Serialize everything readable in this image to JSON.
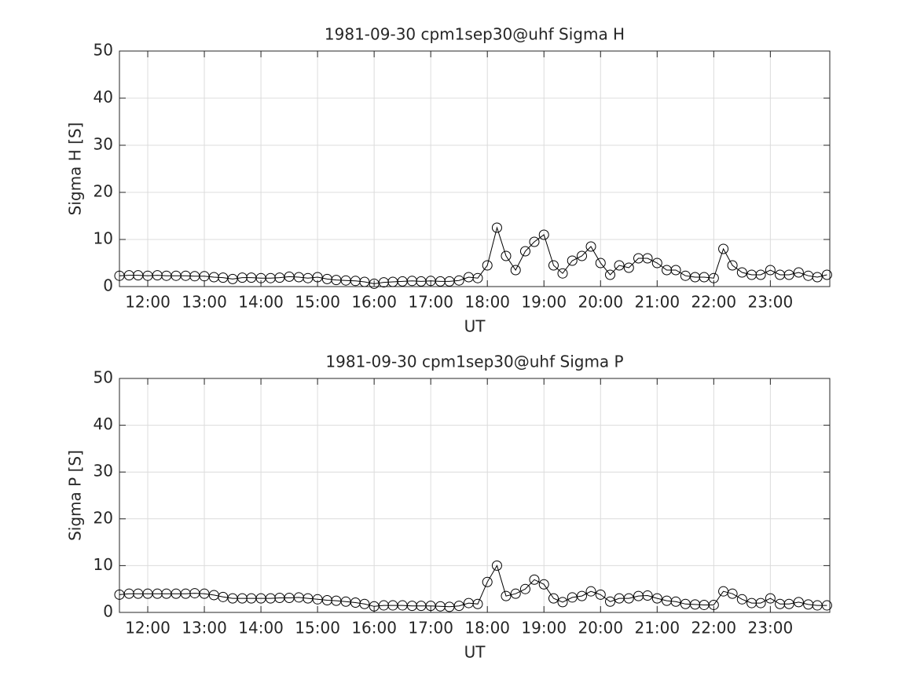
{
  "chart_data": [
    {
      "type": "line",
      "title": "1981-09-30  cpm1sep30@uhf Sigma H",
      "x_label": "UT",
      "y_label": "Sigma H [S]",
      "xlim": [
        11.5,
        24.05
      ],
      "ylim": [
        0,
        50
      ],
      "yticks": [
        0,
        10,
        20,
        30,
        40,
        50
      ],
      "xticks": [
        {
          "value": 12,
          "label": "12:00"
        },
        {
          "value": 13,
          "label": "13:00"
        },
        {
          "value": 14,
          "label": "14:00"
        },
        {
          "value": 15,
          "label": "15:00"
        },
        {
          "value": 16,
          "label": "16:00"
        },
        {
          "value": 17,
          "label": "17:00"
        },
        {
          "value": 18,
          "label": "18:00"
        },
        {
          "value": 19,
          "label": "19:00"
        },
        {
          "value": 20,
          "label": "20:00"
        },
        {
          "value": 21,
          "label": "21:00"
        },
        {
          "value": 22,
          "label": "22:00"
        },
        {
          "value": 23,
          "label": "23:00"
        }
      ],
      "grid": true,
      "color": "#000000",
      "x": [
        11.5,
        11.67,
        11.83,
        12,
        12.17,
        12.33,
        12.5,
        12.67,
        12.83,
        13,
        13.17,
        13.33,
        13.5,
        13.67,
        13.83,
        14,
        14.17,
        14.33,
        14.5,
        14.67,
        14.83,
        15,
        15.17,
        15.33,
        15.5,
        15.67,
        15.83,
        16,
        16.17,
        16.33,
        16.5,
        16.67,
        16.83,
        17,
        17.17,
        17.33,
        17.5,
        17.67,
        17.83,
        18,
        18.17,
        18.33,
        18.5,
        18.67,
        18.83,
        19,
        19.17,
        19.33,
        19.5,
        19.67,
        19.83,
        20,
        20.17,
        20.33,
        20.5,
        20.67,
        20.83,
        21,
        21.17,
        21.33,
        21.5,
        21.67,
        21.83,
        22,
        22.17,
        22.33,
        22.5,
        22.67,
        22.83,
        23,
        23.17,
        23.33,
        23.5,
        23.67,
        23.83,
        24
      ],
      "values": [
        2.3,
        2.4,
        2.4,
        2.3,
        2.4,
        2.3,
        2.3,
        2.3,
        2.2,
        2.2,
        2.0,
        1.9,
        1.6,
        1.9,
        1.9,
        1.8,
        1.8,
        1.9,
        2.1,
        2.0,
        1.8,
        2.0,
        1.6,
        1.4,
        1.3,
        1.2,
        1.0,
        0.6,
        0.9,
        1.0,
        1.1,
        1.2,
        1.1,
        1.2,
        1.1,
        1.1,
        1.3,
        2.0,
        1.8,
        4.5,
        12.5,
        6.5,
        3.5,
        7.5,
        9.5,
        11,
        4.5,
        2.8,
        5.5,
        6.5,
        8.5,
        5,
        2.5,
        4.5,
        4,
        6,
        6,
        5,
        3.5,
        3.5,
        2.3,
        2.0,
        2.0,
        1.8,
        8,
        4.5,
        3,
        2.5,
        2.5,
        3.5,
        2.5,
        2.5,
        3,
        2.3,
        2.0,
        2.5
      ]
    },
    {
      "type": "line",
      "title": "1981-09-30  cpm1sep30@uhf Sigma P",
      "x_label": "UT",
      "y_label": "Sigma P [S]",
      "xlim": [
        11.5,
        24.05
      ],
      "ylim": [
        0,
        50
      ],
      "yticks": [
        0,
        10,
        20,
        30,
        40,
        50
      ],
      "xticks": [
        {
          "value": 12,
          "label": "12:00"
        },
        {
          "value": 13,
          "label": "13:00"
        },
        {
          "value": 14,
          "label": "14:00"
        },
        {
          "value": 15,
          "label": "15:00"
        },
        {
          "value": 16,
          "label": "16:00"
        },
        {
          "value": 17,
          "label": "17:00"
        },
        {
          "value": 18,
          "label": "18:00"
        },
        {
          "value": 19,
          "label": "19:00"
        },
        {
          "value": 20,
          "label": "20:00"
        },
        {
          "value": 21,
          "label": "21:00"
        },
        {
          "value": 22,
          "label": "22:00"
        },
        {
          "value": 23,
          "label": "23:00"
        }
      ],
      "grid": true,
      "color": "#000000",
      "x": [
        11.5,
        11.67,
        11.83,
        12,
        12.17,
        12.33,
        12.5,
        12.67,
        12.83,
        13,
        13.17,
        13.33,
        13.5,
        13.67,
        13.83,
        14,
        14.17,
        14.33,
        14.5,
        14.67,
        14.83,
        15,
        15.17,
        15.33,
        15.5,
        15.67,
        15.83,
        16,
        16.17,
        16.33,
        16.5,
        16.67,
        16.83,
        17,
        17.17,
        17.33,
        17.5,
        17.67,
        17.83,
        18,
        18.17,
        18.33,
        18.5,
        18.67,
        18.83,
        19,
        19.17,
        19.33,
        19.5,
        19.67,
        19.83,
        20,
        20.17,
        20.33,
        20.5,
        20.67,
        20.83,
        21,
        21.17,
        21.33,
        21.5,
        21.67,
        21.83,
        22,
        22.17,
        22.33,
        22.5,
        22.67,
        22.83,
        23,
        23.17,
        23.33,
        23.5,
        23.67,
        23.83,
        24
      ],
      "values": [
        3.8,
        4.0,
        4.0,
        4.0,
        4.0,
        4.0,
        4.0,
        4.0,
        4.1,
        4.0,
        3.7,
        3.3,
        3.0,
        3.0,
        3.0,
        3.0,
        3.0,
        3.1,
        3.1,
        3.2,
        3.0,
        2.8,
        2.6,
        2.5,
        2.3,
        2.1,
        1.8,
        1.3,
        1.5,
        1.5,
        1.5,
        1.4,
        1.4,
        1.4,
        1.3,
        1.2,
        1.4,
        2.0,
        1.8,
        6.5,
        10,
        3.5,
        4,
        5,
        7,
        6,
        3,
        2.2,
        3.2,
        3.5,
        4.5,
        3.8,
        2.3,
        3.0,
        3.0,
        3.5,
        3.6,
        3.0,
        2.5,
        2.3,
        1.8,
        1.7,
        1.6,
        1.6,
        4.5,
        4.0,
        2.8,
        2.0,
        2.0,
        3.0,
        1.8,
        1.8,
        2.2,
        1.7,
        1.5,
        1.5
      ]
    }
  ]
}
